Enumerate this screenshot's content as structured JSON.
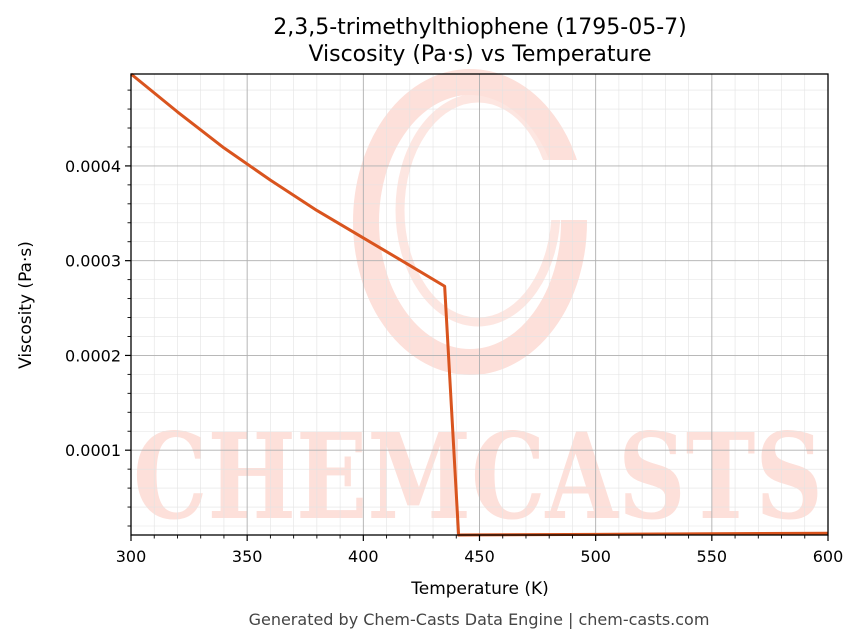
{
  "colors": {
    "line": "#d9541e",
    "watermark": "#fde0da",
    "grid_major": "#b0b0b0",
    "grid_minor": "#e3e3e3",
    "footer": "#444444"
  },
  "watermark": {
    "text": "CHEMCASTS"
  },
  "footer": {
    "text": "Generated by Chem-Casts Data Engine | chem-casts.com"
  },
  "chart_data": {
    "type": "line",
    "title": "2,3,5-trimethylthiophene (1795-05-7)",
    "subtitle": "Viscosity (Pa·s) vs Temperature",
    "xlabel": "Temperature (K)",
    "ylabel": "Viscosity (Pa·s)",
    "xlim": [
      300,
      600
    ],
    "ylim": [
      1.05e-05,
      0.000497
    ],
    "xticks": [
      300,
      350,
      400,
      450,
      500,
      550,
      600
    ],
    "xtick_labels": [
      "300",
      "350",
      "400",
      "450",
      "500",
      "550",
      "600"
    ],
    "yticks": [
      0.0001,
      0.0002,
      0.0003,
      0.0004
    ],
    "ytick_labels": [
      "0.0001",
      "0.0002",
      "0.0003",
      "0.0004"
    ],
    "grid": true,
    "series": [
      {
        "x": [
          300,
          320,
          340,
          360,
          380,
          400,
          420,
          435,
          441,
          450,
          500,
          550,
          600
        ],
        "y": [
          0.000497,
          0.000457,
          0.000419,
          0.000385,
          0.000353,
          0.000324,
          0.000295,
          0.000273,
          1.05e-05,
          1.06e-05,
          1.12e-05,
          1.18e-05,
          1.24e-05
        ]
      }
    ]
  }
}
